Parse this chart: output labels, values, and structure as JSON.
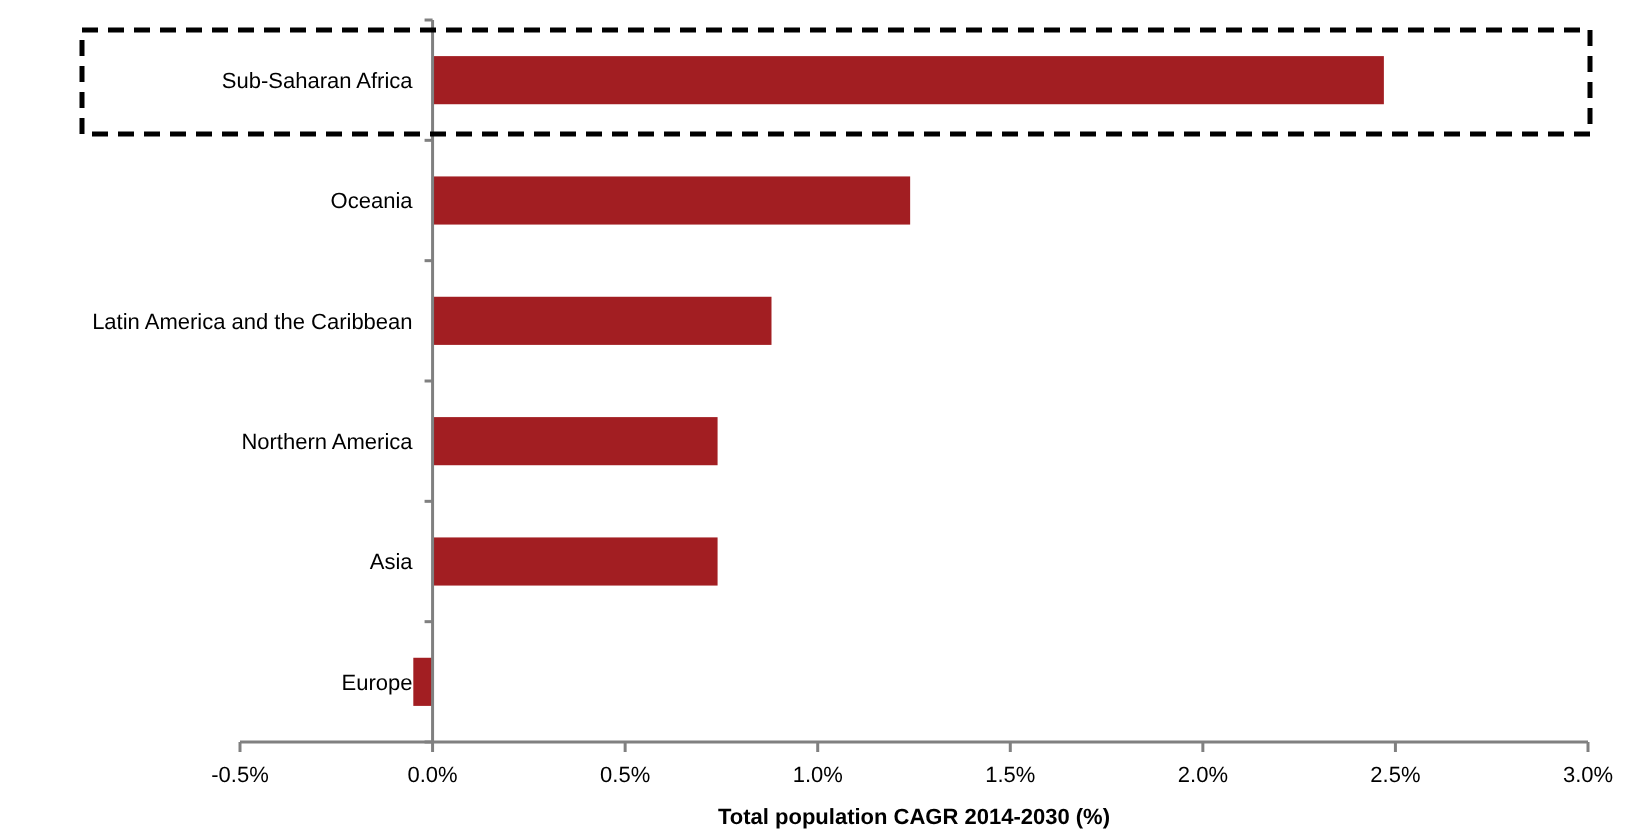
{
  "chart_data": {
    "type": "bar",
    "orientation": "horizontal",
    "xlabel": "Total population CAGR 2014-2030 (%)",
    "categories": [
      "Sub-Saharan Africa",
      "Oceania",
      "Latin America and the Caribbean",
      "Northern America",
      "Asia",
      "Europe"
    ],
    "values": [
      2.47,
      1.24,
      0.88,
      0.74,
      0.74,
      -0.05
    ],
    "color": "#a21e22",
    "xlim": [
      -0.5,
      3.0
    ],
    "xticks": [
      {
        "value": -0.5,
        "label": "-0.5%"
      },
      {
        "value": 0,
        "label": "0.0%"
      },
      {
        "value": 0.5,
        "label": "0.5%"
      },
      {
        "value": 1,
        "label": "1.0%"
      },
      {
        "value": 1.5,
        "label": "1.5%"
      },
      {
        "value": 2,
        "label": "2.0%"
      },
      {
        "value": 2.5,
        "label": "2.5%"
      },
      {
        "value": 3,
        "label": "3.0%"
      }
    ],
    "grid": false
  }
}
